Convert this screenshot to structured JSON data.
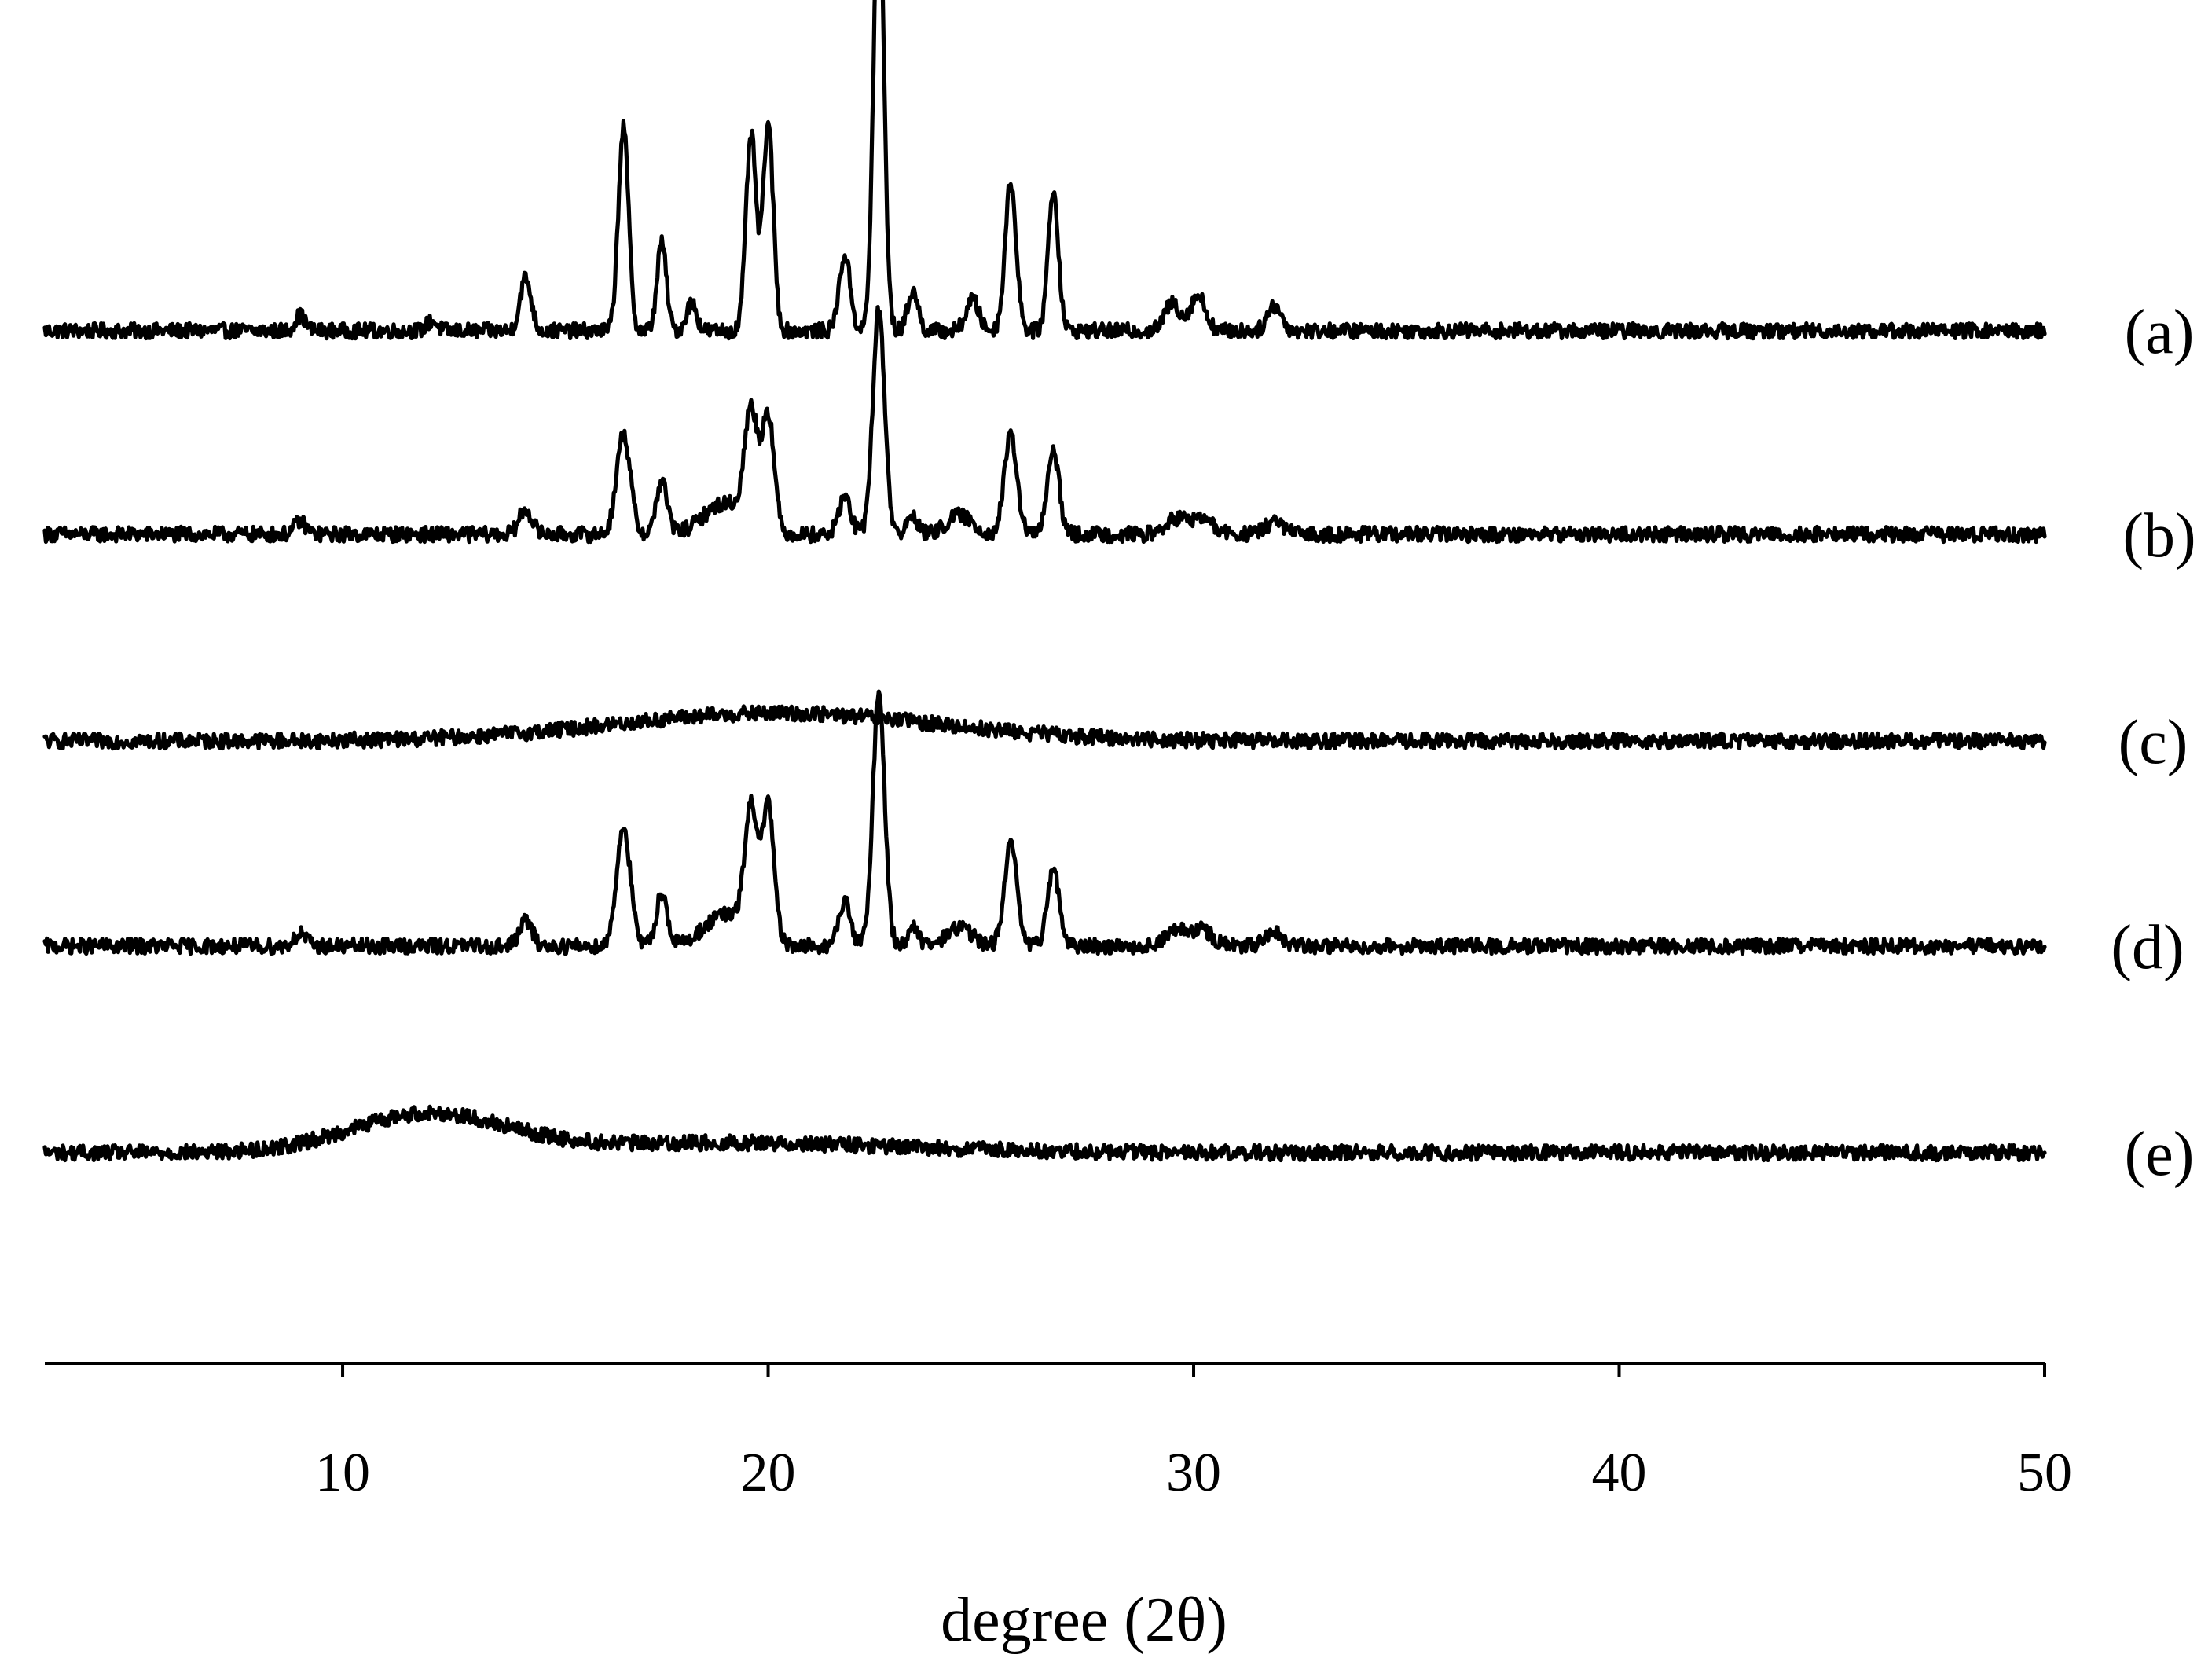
{
  "chart_data": {
    "type": "line",
    "title": "",
    "xlabel": "degree (2θ)",
    "ylabel": "",
    "xlim": [
      3,
      50
    ],
    "xticks": [
      10,
      20,
      30,
      40,
      50
    ],
    "y_axis_shown": false,
    "grid": false,
    "legend": "none",
    "line_color": "#000000",
    "series": [
      {
        "name": "(a)",
        "baseline": 0.05,
        "noise": 0.006,
        "peaks": [
          {
            "x": 9.0,
            "h": 0.012,
            "w": 0.12
          },
          {
            "x": 12.1,
            "h": 0.008,
            "w": 0.12
          },
          {
            "x": 14.3,
            "h": 0.042,
            "w": 0.13
          },
          {
            "x": 16.6,
            "h": 0.162,
            "w": 0.12
          },
          {
            "x": 17.5,
            "h": 0.07,
            "w": 0.11
          },
          {
            "x": 18.2,
            "h": 0.022,
            "w": 0.12
          },
          {
            "x": 19.6,
            "h": 0.156,
            "w": 0.12
          },
          {
            "x": 20.0,
            "h": 0.165,
            "w": 0.12
          },
          {
            "x": 21.8,
            "h": 0.06,
            "w": 0.13
          },
          {
            "x": 22.6,
            "h": 0.362,
            "w": 0.12
          },
          {
            "x": 23.4,
            "h": 0.032,
            "w": 0.12
          },
          {
            "x": 24.8,
            "h": 0.025,
            "w": 0.15
          },
          {
            "x": 25.7,
            "h": 0.118,
            "w": 0.13
          },
          {
            "x": 26.7,
            "h": 0.112,
            "w": 0.12
          },
          {
            "x": 29.5,
            "h": 0.022,
            "w": 0.18
          },
          {
            "x": 30.1,
            "h": 0.028,
            "w": 0.18
          },
          {
            "x": 31.9,
            "h": 0.02,
            "w": 0.16
          }
        ]
      },
      {
        "name": "(b)",
        "baseline": 0.05,
        "noise": 0.006,
        "peaks": [
          {
            "x": 9.0,
            "h": 0.01,
            "w": 0.14
          },
          {
            "x": 14.3,
            "h": 0.02,
            "w": 0.15
          },
          {
            "x": 16.6,
            "h": 0.08,
            "w": 0.16
          },
          {
            "x": 17.5,
            "h": 0.042,
            "w": 0.13
          },
          {
            "x": 19.0,
            "h": 0.025,
            "w": 0.5
          },
          {
            "x": 19.6,
            "h": 0.09,
            "w": 0.15
          },
          {
            "x": 20.0,
            "h": 0.093,
            "w": 0.14
          },
          {
            "x": 21.8,
            "h": 0.03,
            "w": 0.14
          },
          {
            "x": 22.6,
            "h": 0.178,
            "w": 0.14
          },
          {
            "x": 23.4,
            "h": 0.015,
            "w": 0.12
          },
          {
            "x": 24.5,
            "h": 0.015,
            "w": 0.3
          },
          {
            "x": 25.7,
            "h": 0.078,
            "w": 0.15
          },
          {
            "x": 26.7,
            "h": 0.065,
            "w": 0.14
          },
          {
            "x": 29.6,
            "h": 0.012,
            "w": 0.25
          },
          {
            "x": 30.2,
            "h": 0.012,
            "w": 0.25
          },
          {
            "x": 31.9,
            "h": 0.01,
            "w": 0.2
          }
        ]
      },
      {
        "name": "(c)",
        "baseline": 0.05,
        "noise": 0.006,
        "peaks": [
          {
            "x": 20.2,
            "h": 0.022,
            "w": 3.8
          }
        ]
      },
      {
        "name": "(d)",
        "baseline": 0.05,
        "noise": 0.006,
        "peaks": [
          {
            "x": 9.0,
            "h": 0.01,
            "w": 0.14
          },
          {
            "x": 14.3,
            "h": 0.02,
            "w": 0.15
          },
          {
            "x": 16.6,
            "h": 0.095,
            "w": 0.16
          },
          {
            "x": 17.5,
            "h": 0.042,
            "w": 0.13
          },
          {
            "x": 19.0,
            "h": 0.025,
            "w": 0.5
          },
          {
            "x": 19.6,
            "h": 0.1,
            "w": 0.15
          },
          {
            "x": 20.0,
            "h": 0.107,
            "w": 0.14
          },
          {
            "x": 21.8,
            "h": 0.035,
            "w": 0.14
          },
          {
            "x": 22.6,
            "h": 0.2,
            "w": 0.14
          },
          {
            "x": 23.4,
            "h": 0.015,
            "w": 0.12
          },
          {
            "x": 24.5,
            "h": 0.015,
            "w": 0.3
          },
          {
            "x": 25.7,
            "h": 0.08,
            "w": 0.15
          },
          {
            "x": 26.7,
            "h": 0.062,
            "w": 0.14
          },
          {
            "x": 29.6,
            "h": 0.012,
            "w": 0.25
          },
          {
            "x": 30.2,
            "h": 0.012,
            "w": 0.25
          },
          {
            "x": 31.9,
            "h": 0.01,
            "w": 0.2
          }
        ]
      },
      {
        "name": "(e)",
        "baseline": 0.05,
        "noise": 0.006,
        "peaks": [
          {
            "x": 12.0,
            "h": 0.03,
            "w": 1.8
          },
          {
            "x": 19.0,
            "h": 0.008,
            "w": 4.0
          }
        ]
      }
    ]
  }
}
